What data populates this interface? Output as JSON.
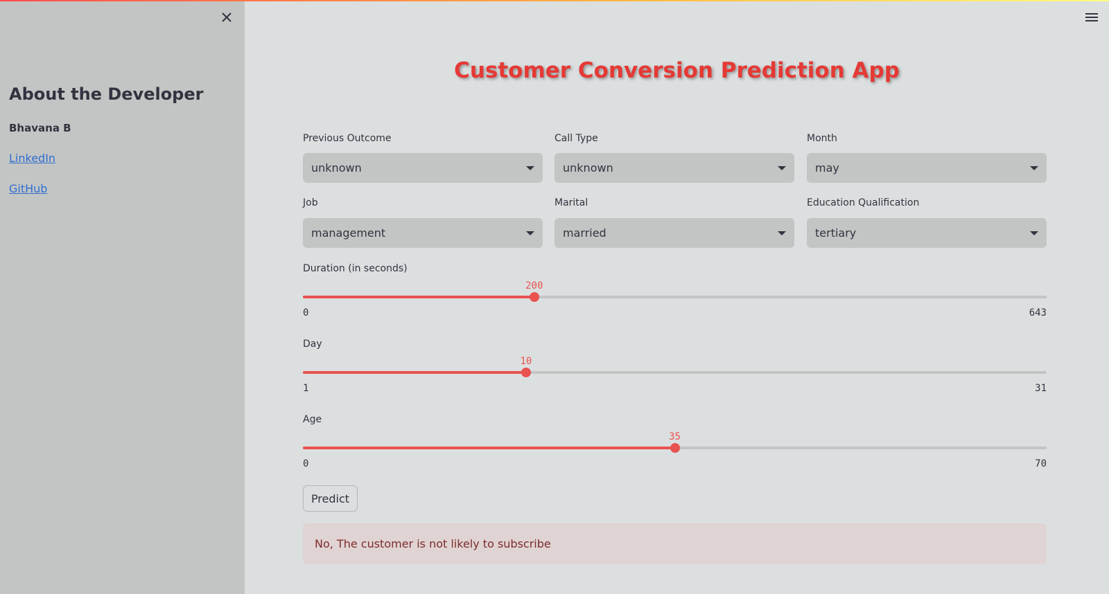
{
  "sidebar": {
    "heading": "About the Developer",
    "developer_name": "Bhavana B",
    "links": [
      {
        "label": "LinkedIn"
      },
      {
        "label": "GitHub"
      }
    ]
  },
  "main": {
    "title": "Customer Conversion Prediction App",
    "selects": {
      "previous_outcome": {
        "label": "Previous Outcome",
        "value": "unknown"
      },
      "call_type": {
        "label": "Call Type",
        "value": "unknown"
      },
      "month": {
        "label": "Month",
        "value": "may"
      },
      "job": {
        "label": "Job",
        "value": "management"
      },
      "marital": {
        "label": "Marital",
        "value": "married"
      },
      "education": {
        "label": "Education Qualification",
        "value": "tertiary"
      }
    },
    "sliders": {
      "duration": {
        "label": "Duration (in seconds)",
        "value": 200,
        "min": 0,
        "max": 643
      },
      "day": {
        "label": "Day",
        "value": 10,
        "min": 1,
        "max": 31
      },
      "age": {
        "label": "Age",
        "value": 35,
        "min": 0,
        "max": 70
      }
    },
    "predict_label": "Predict",
    "result_text": "No, The customer is not likely to subscribe"
  },
  "colors": {
    "accent": "#e8524f",
    "title": "#e53935",
    "link": "#2f6fcf",
    "result_bg": "#e0d3d3",
    "result_text": "#7d2b2b"
  }
}
